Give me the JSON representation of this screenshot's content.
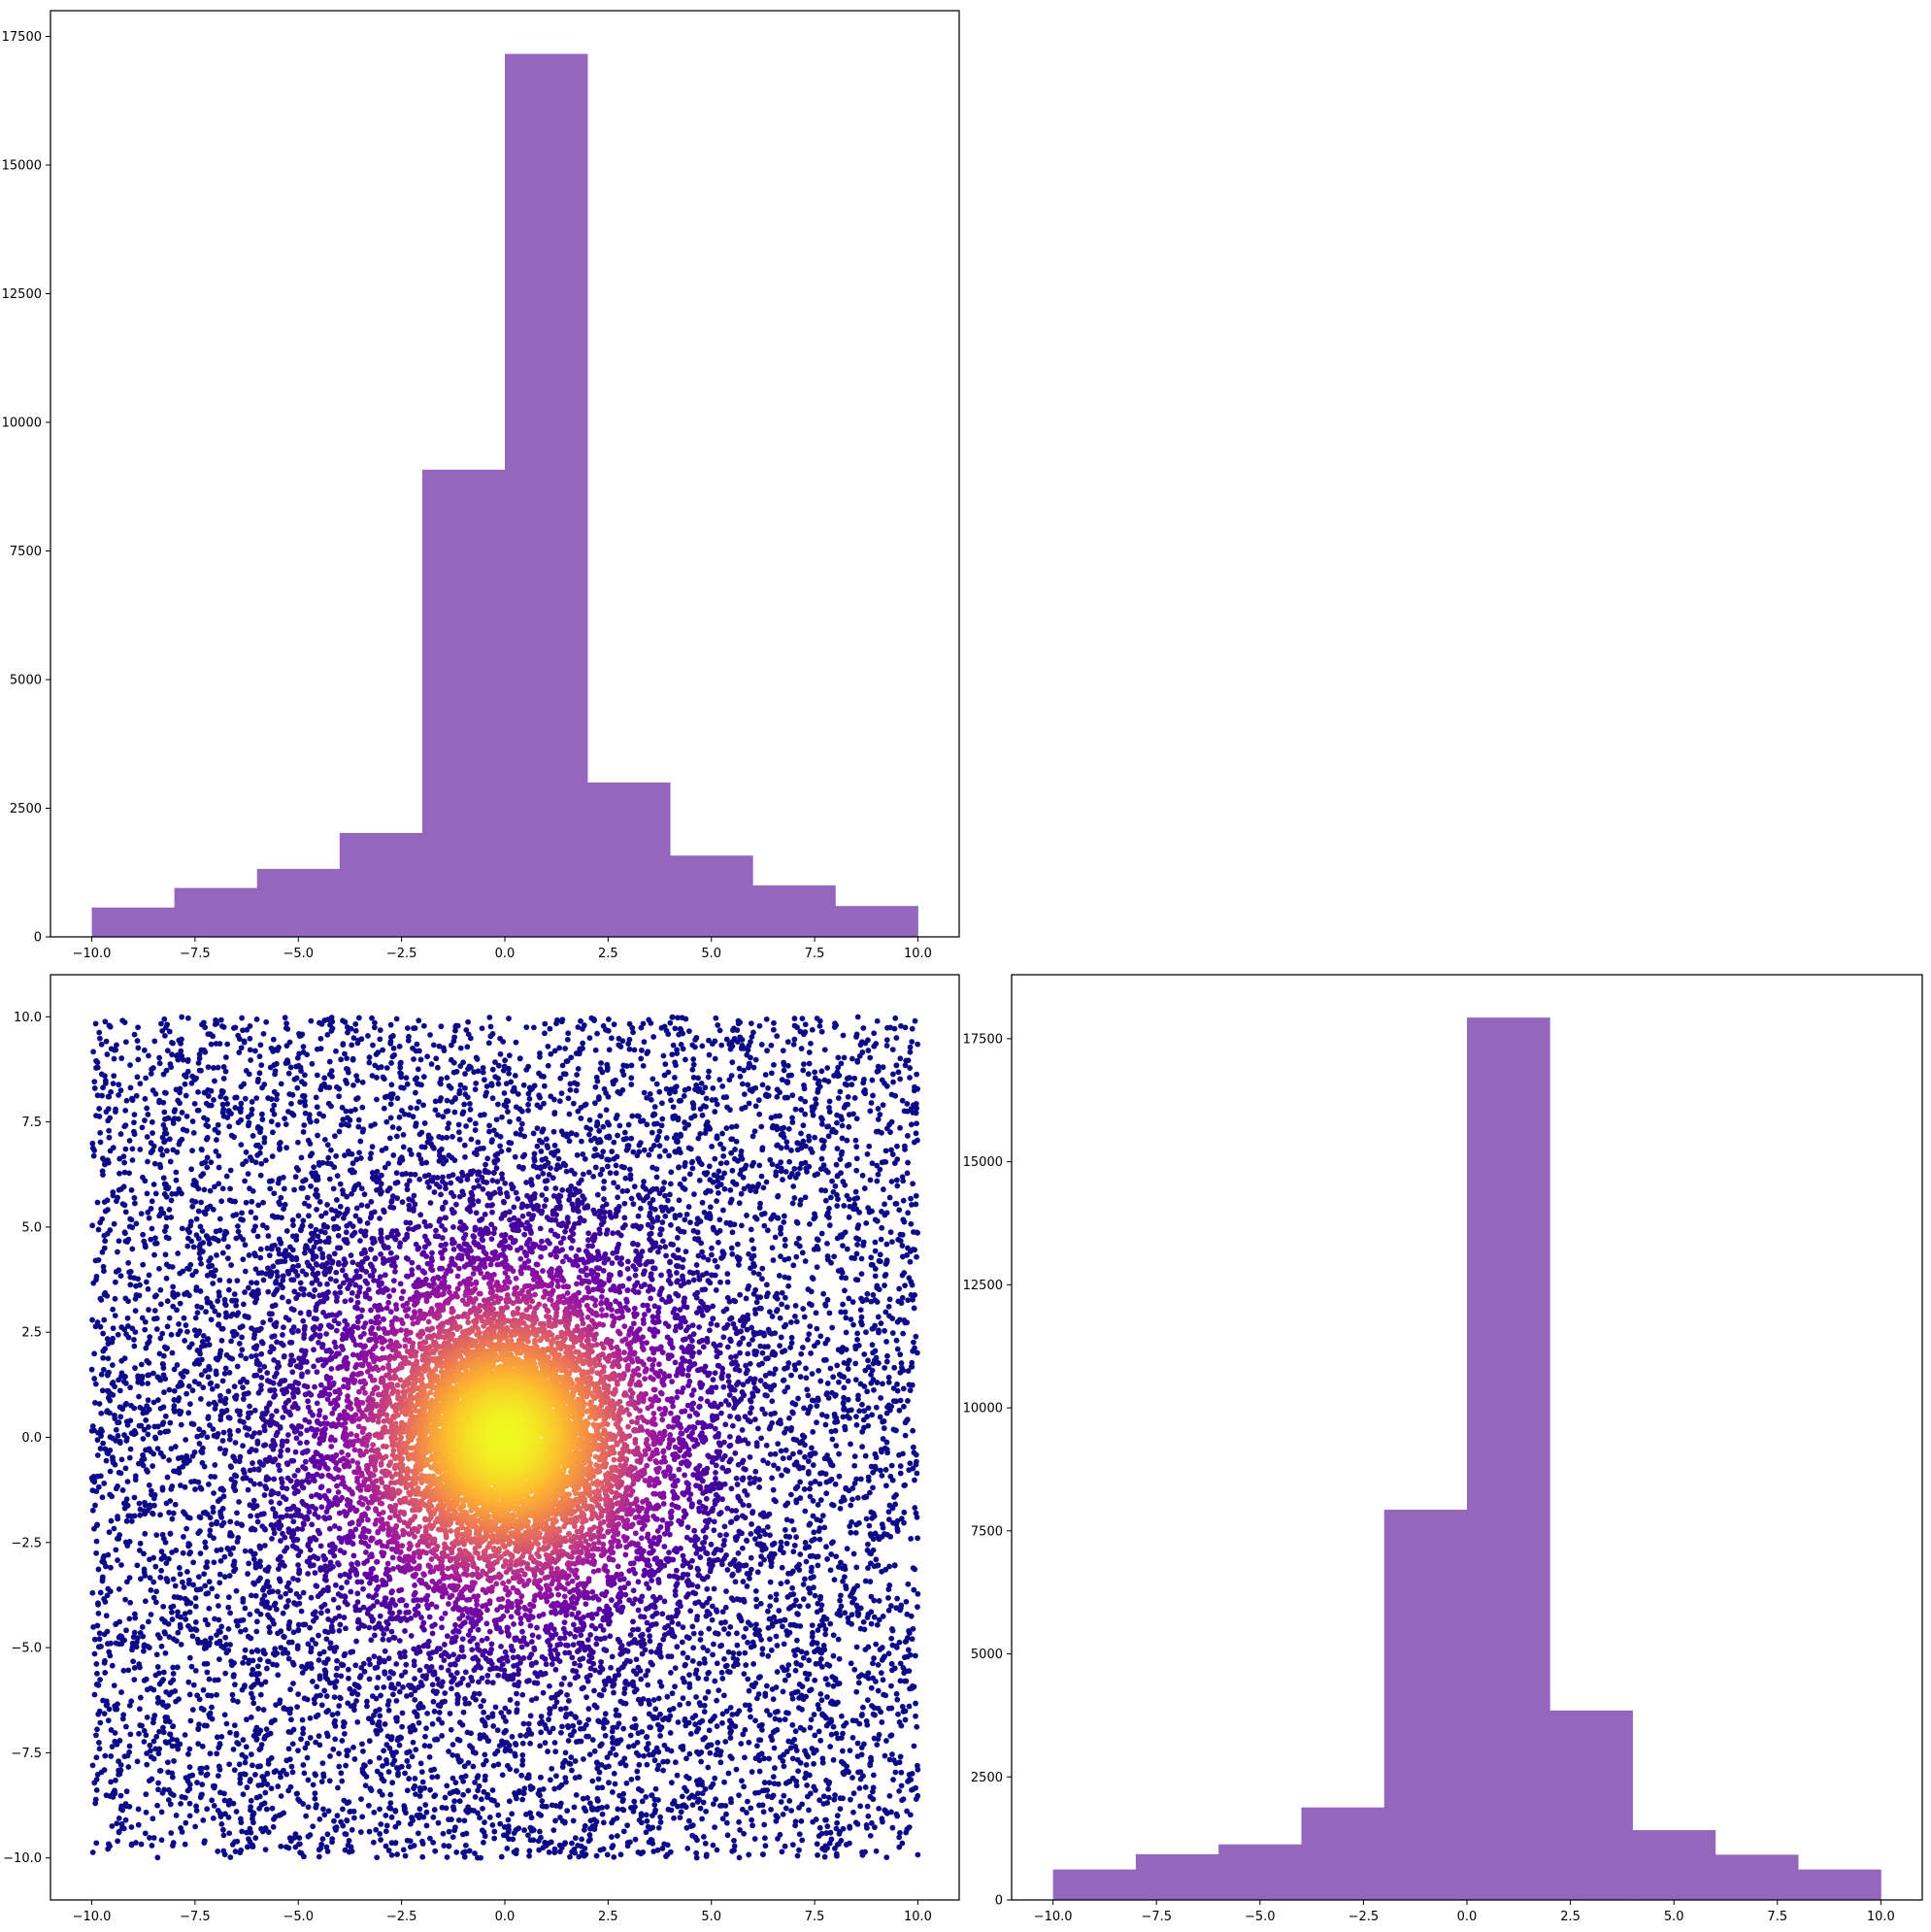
{
  "chart_data": [
    {
      "type": "bar",
      "panel": "top-left",
      "xlim": [
        -11,
        11
      ],
      "ylim": [
        0,
        18000
      ],
      "xticks": [
        -10,
        -7.5,
        -5,
        -2.5,
        0,
        2.5,
        5,
        7.5,
        10
      ],
      "xtick_labels": [
        "−10.0",
        "−7.5",
        "−5.0",
        "−2.5",
        "0.0",
        "2.5",
        "5.0",
        "7.5",
        "10.0"
      ],
      "yticks": [
        0,
        2500,
        5000,
        7500,
        10000,
        12500,
        15000,
        17500
      ],
      "ytick_labels": [
        "0",
        "2500",
        "5000",
        "7500",
        "10000",
        "12500",
        "15000",
        "17500"
      ],
      "bin_edges": [
        -10,
        -8,
        -6,
        -4,
        -2,
        0,
        2,
        4,
        6,
        8,
        10
      ],
      "values": [
        570,
        950,
        1320,
        2020,
        9080,
        17160,
        3000,
        1580,
        1000,
        600
      ],
      "color": "#9467bd"
    },
    {
      "type": "scatter",
      "panel": "bottom-left",
      "xlim": [
        -11,
        11
      ],
      "ylim": [
        -11,
        11
      ],
      "xticks": [
        -10,
        -7.5,
        -5,
        -2.5,
        0,
        2.5,
        5,
        7.5,
        10
      ],
      "xtick_labels": [
        "−10.0",
        "−7.5",
        "−5.0",
        "−2.5",
        "0.0",
        "2.5",
        "5.0",
        "7.5",
        "10.0"
      ],
      "yticks": [
        -10,
        -7.5,
        -5,
        -2.5,
        0,
        2.5,
        5,
        7.5,
        10
      ],
      "ytick_labels": [
        "−10.0",
        "−7.5",
        "−5.0",
        "−2.5",
        "0.0",
        "2.5",
        "5.0",
        "7.5",
        "10.0"
      ],
      "x_range": [
        -10,
        10
      ],
      "y_range": [
        -10,
        10
      ],
      "density_peak": [
        0,
        0
      ],
      "colormap": "plasma",
      "colormap_stops": [
        "#0d0887",
        "#5c01a6",
        "#9c179e",
        "#cc4778",
        "#ed7953",
        "#fdb42f",
        "#f0f921"
      ]
    },
    {
      "type": "bar",
      "panel": "bottom-right",
      "xlim": [
        -11,
        11
      ],
      "ylim": [
        0,
        18800
      ],
      "xticks": [
        -10,
        -7.5,
        -5,
        -2.5,
        0,
        2.5,
        5,
        7.5,
        10
      ],
      "xtick_labels": [
        "−10.0",
        "−7.5",
        "−5.0",
        "−2.5",
        "0.0",
        "2.5",
        "5.0",
        "7.5",
        "10.0"
      ],
      "yticks": [
        0,
        2500,
        5000,
        7500,
        10000,
        12500,
        15000,
        17500
      ],
      "ytick_labels": [
        "0",
        "2500",
        "5000",
        "7500",
        "10000",
        "12500",
        "15000",
        "17500"
      ],
      "bin_edges": [
        -10,
        -8,
        -6,
        -4,
        -2,
        0,
        2,
        4,
        6,
        8,
        10
      ],
      "values": [
        620,
        930,
        1130,
        1880,
        7930,
        17930,
        3850,
        1420,
        920,
        620
      ],
      "color": "#9467bd"
    }
  ]
}
